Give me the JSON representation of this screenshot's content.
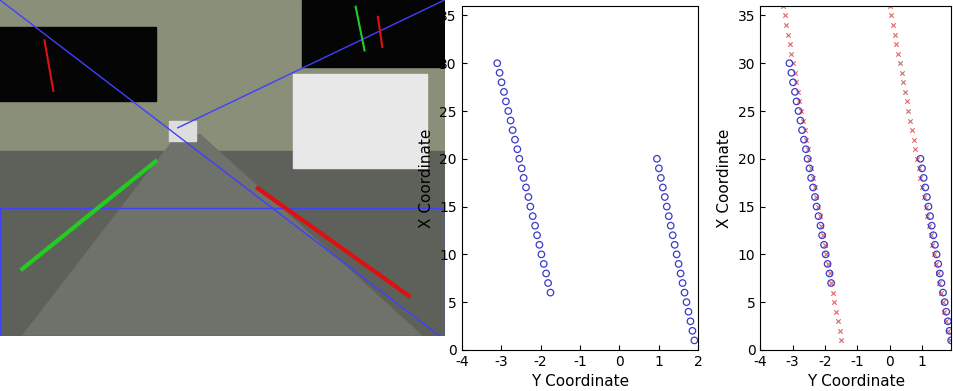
{
  "chart_data": [
    {
      "type": "scatter",
      "xlabel": "Y Coordinate",
      "ylabel": "X Coordinate",
      "xlim": [
        -4,
        2
      ],
      "ylim": [
        0,
        36
      ],
      "xticks": [
        -4,
        -3,
        -2,
        -1,
        0,
        1,
        2
      ],
      "yticks": [
        0,
        5,
        10,
        15,
        20,
        25,
        30,
        35
      ],
      "series": [
        {
          "color": "#3b3bc8",
          "marker": "circle",
          "x": [
            -1.75,
            -1.81,
            -1.86,
            -1.92,
            -1.98,
            -2.03,
            -2.09,
            -2.14,
            -2.2,
            -2.26,
            -2.31,
            -2.37,
            -2.43,
            -2.48,
            -2.54,
            -2.59,
            -2.65,
            -2.71,
            -2.76,
            -2.82,
            -2.88,
            -2.93,
            -2.99,
            -3.04,
            -3.1
          ],
          "values": [
            6,
            7,
            8,
            9,
            10,
            11,
            12,
            13,
            14,
            15,
            16,
            17,
            18,
            19,
            20,
            21,
            22,
            23,
            24,
            25,
            26,
            27,
            28,
            29,
            30
          ]
        },
        {
          "color": "#3b3bc8",
          "marker": "circle",
          "x": [
            1.9,
            1.85,
            1.8,
            1.75,
            1.7,
            1.65,
            1.6,
            1.55,
            1.5,
            1.45,
            1.4,
            1.35,
            1.3,
            1.25,
            1.2,
            1.15,
            1.1,
            1.05,
            1.0,
            0.95
          ],
          "values": [
            1,
            2,
            3,
            4,
            5,
            6,
            7,
            8,
            9,
            10,
            11,
            12,
            13,
            14,
            15,
            16,
            17,
            18,
            19,
            20
          ]
        }
      ]
    },
    {
      "type": "scatter",
      "xlabel": "Y Coordinate",
      "ylabel": "X Coordinate",
      "xlim": [
        -4,
        1.9
      ],
      "ylim": [
        0,
        36
      ],
      "xticks": [
        -4,
        -3,
        -2,
        -1,
        0,
        1
      ],
      "yticks": [
        0,
        5,
        10,
        15,
        20,
        25,
        30,
        35
      ],
      "series": [
        {
          "color": "#e06666",
          "marker": "x",
          "x": [
            -1.5,
            -1.55,
            -1.6,
            -1.65,
            -1.71,
            -1.76,
            -1.81,
            -1.86,
            -1.91,
            -1.96,
            -2.01,
            -2.07,
            -2.12,
            -2.17,
            -2.22,
            -2.27,
            -2.32,
            -2.37,
            -2.43,
            -2.48,
            -2.53,
            -2.58,
            -2.63,
            -2.68,
            -2.73,
            -2.79,
            -2.84,
            -2.89,
            -2.94,
            -2.99,
            -3.04,
            -3.09,
            -3.15,
            -3.2,
            -3.25,
            -3.3
          ],
          "values": [
            1,
            2,
            3,
            4,
            5,
            6,
            7,
            8,
            9,
            10,
            11,
            12,
            13,
            14,
            15,
            16,
            17,
            18,
            19,
            20,
            21,
            22,
            23,
            24,
            25,
            26,
            27,
            28,
            29,
            30,
            31,
            32,
            33,
            34,
            35,
            36
          ]
        },
        {
          "color": "#e06666",
          "marker": "x",
          "x": [
            1.85,
            1.8,
            1.74,
            1.69,
            1.64,
            1.59,
            1.53,
            1.48,
            1.43,
            1.37,
            1.32,
            1.27,
            1.22,
            1.16,
            1.11,
            1.06,
            1.0,
            0.95,
            0.9,
            0.85,
            0.79,
            0.74,
            0.69,
            0.63,
            0.58,
            0.53,
            0.48,
            0.42,
            0.37,
            0.32,
            0.26,
            0.21,
            0.16,
            0.11,
            0.05,
            0.0
          ],
          "values": [
            1,
            2,
            3,
            4,
            5,
            6,
            7,
            8,
            9,
            10,
            11,
            12,
            13,
            14,
            15,
            16,
            17,
            18,
            19,
            20,
            21,
            22,
            23,
            24,
            25,
            26,
            27,
            28,
            29,
            30,
            31,
            32,
            33,
            34,
            35,
            36
          ]
        },
        {
          "color": "#3b3bc8",
          "marker": "circle",
          "x": [
            -1.81,
            -1.86,
            -1.92,
            -1.98,
            -2.03,
            -2.09,
            -2.14,
            -2.2,
            -2.26,
            -2.31,
            -2.37,
            -2.43,
            -2.48,
            -2.54,
            -2.59,
            -2.65,
            -2.71,
            -2.76,
            -2.82,
            -2.88,
            -2.93,
            -2.99,
            -3.04,
            -3.1
          ],
          "values": [
            7,
            8,
            9,
            10,
            11,
            12,
            13,
            14,
            15,
            16,
            17,
            18,
            19,
            20,
            21,
            22,
            23,
            24,
            25,
            26,
            27,
            28,
            29,
            30
          ]
        },
        {
          "color": "#3b3bc8",
          "marker": "circle",
          "x": [
            1.9,
            1.85,
            1.8,
            1.75,
            1.7,
            1.65,
            1.6,
            1.55,
            1.5,
            1.45,
            1.4,
            1.35,
            1.3,
            1.25,
            1.2,
            1.15,
            1.1,
            1.05,
            1.0,
            0.95
          ],
          "values": [
            1,
            2,
            3,
            4,
            5,
            6,
            7,
            8,
            9,
            10,
            11,
            12,
            13,
            14,
            15,
            16,
            17,
            18,
            19,
            20
          ]
        }
      ]
    }
  ]
}
